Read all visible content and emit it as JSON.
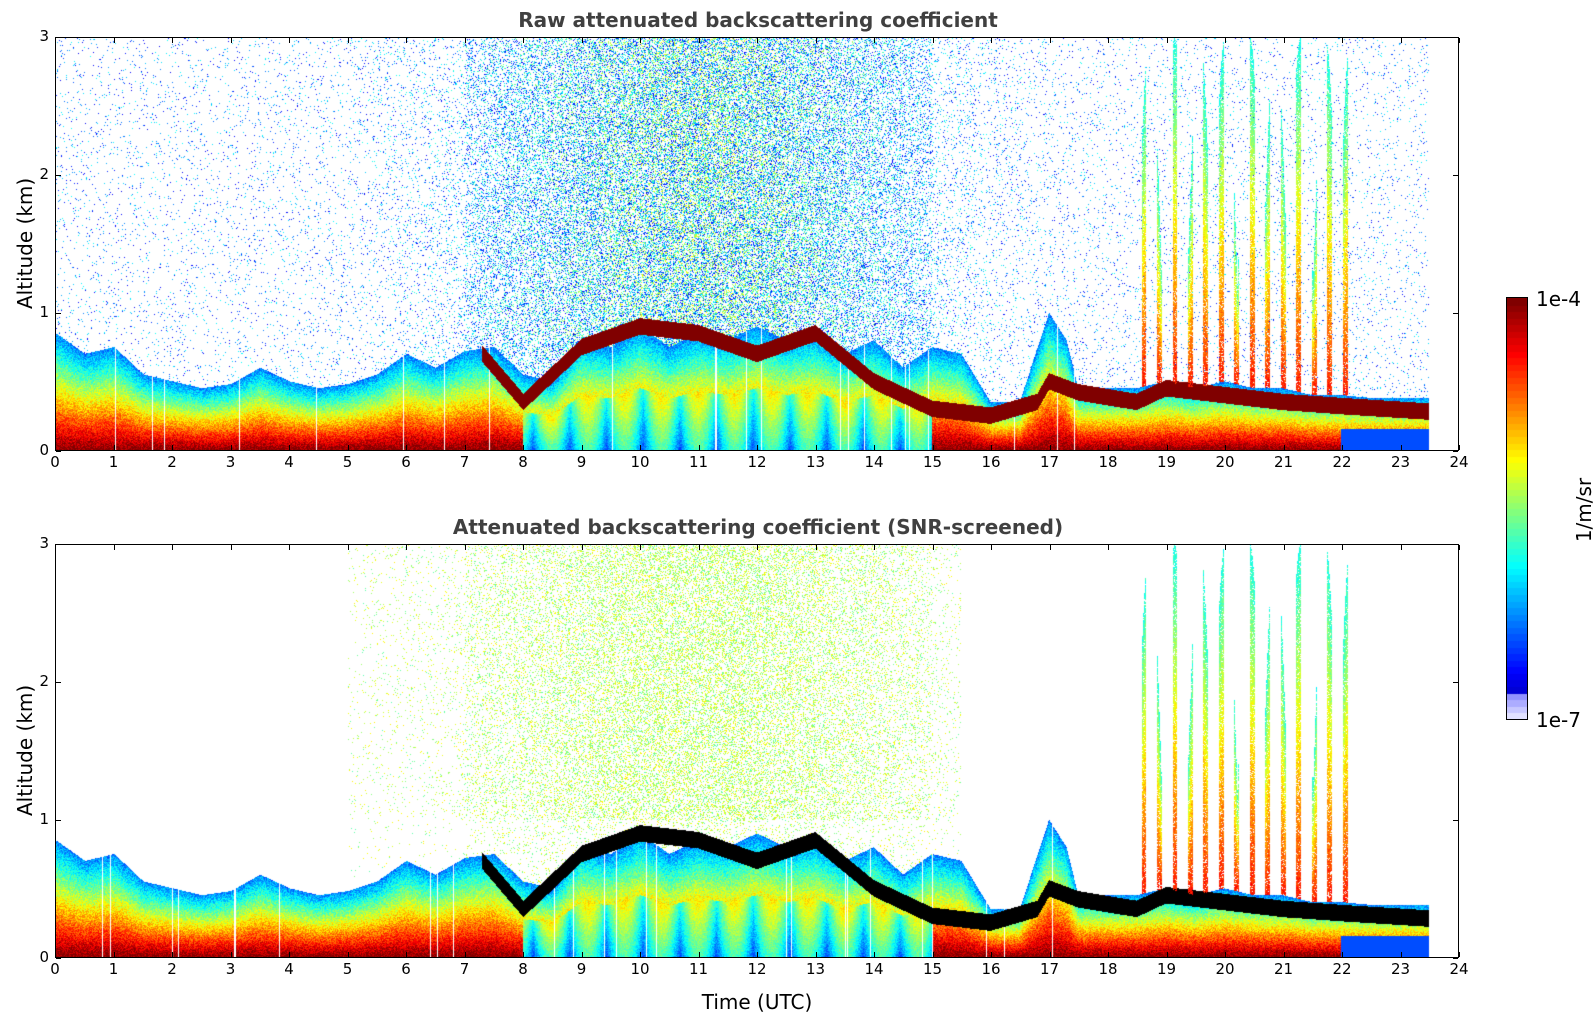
{
  "chart_data": [
    {
      "type": "heatmap",
      "title": "Raw attenuated backscattering coefficient",
      "xlabel": "",
      "ylabel": "Altitude (km)",
      "xlim": [
        0,
        24
      ],
      "ylim": [
        0,
        3
      ],
      "xticks": [
        "0",
        "1",
        "2",
        "3",
        "4",
        "5",
        "6",
        "7",
        "8",
        "9",
        "10",
        "11",
        "12",
        "13",
        "14",
        "15",
        "16",
        "17",
        "18",
        "19",
        "20",
        "21",
        "22",
        "23",
        "24"
      ],
      "yticks": [
        "0",
        "1",
        "2",
        "3"
      ],
      "data_time_end": 23.5,
      "screened": false
    },
    {
      "type": "heatmap",
      "title": "Attenuated backscattering coefficient (SNR-screened)",
      "xlabel": "Time (UTC)",
      "ylabel": "Altitude (km)",
      "xlim": [
        0,
        24
      ],
      "ylim": [
        0,
        3
      ],
      "xticks": [
        "0",
        "1",
        "2",
        "3",
        "4",
        "5",
        "6",
        "7",
        "8",
        "9",
        "10",
        "11",
        "12",
        "13",
        "14",
        "15",
        "16",
        "17",
        "18",
        "19",
        "20",
        "21",
        "22",
        "23",
        "24"
      ],
      "yticks": [
        "0",
        "1",
        "2",
        "3"
      ],
      "data_time_end": 23.5,
      "screened": true
    }
  ],
  "colorbar": {
    "label": "1/m/sr",
    "max_label": "1e-4",
    "min_label": "1e-7",
    "colormap": "jet",
    "scale": "log"
  }
}
